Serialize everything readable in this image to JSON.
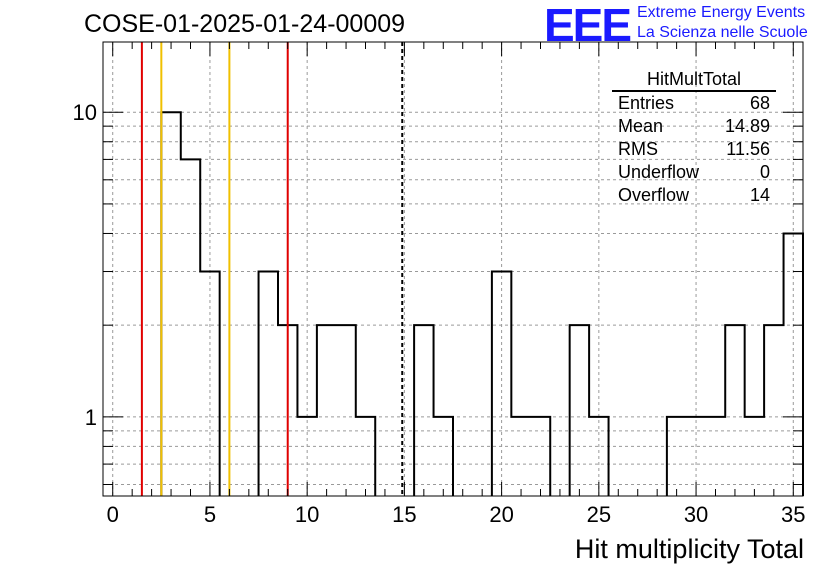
{
  "title": "COSE-01-2025-01-24-00009",
  "logo": {
    "mark": "EEE",
    "line1": "Extreme Energy Events",
    "line2": "La Scienza nelle Scuole"
  },
  "stats_box": {
    "name": "HitMultTotal",
    "rows": [
      {
        "label": "Entries",
        "value": "68"
      },
      {
        "label": "Mean",
        "value": "14.89"
      },
      {
        "label": "RMS",
        "value": "11.56"
      },
      {
        "label": "Underflow",
        "value": "0"
      },
      {
        "label": "Overflow",
        "value": "14"
      }
    ]
  },
  "colors": {
    "hist": "#000000",
    "red_line": "#e00000",
    "yellow_line": "#f0c000",
    "grid": "#9a9a9a"
  },
  "chart_data": {
    "type": "histogram",
    "xlabel": "Hit multiplicity Total",
    "ylabel": "",
    "xlim": [
      -0.5,
      35.5
    ],
    "ylim_log": [
      0.55,
      17
    ],
    "log_y": true,
    "grid": true,
    "bin_width": 1,
    "bin_start": -0.5,
    "counts": [
      0,
      0,
      0,
      10,
      7,
      3,
      0,
      0,
      3,
      2,
      1,
      2,
      2,
      1,
      0,
      0,
      2,
      1,
      0,
      0,
      3,
      1,
      1,
      0,
      2,
      1,
      0,
      0,
      0,
      1,
      1,
      1,
      2,
      1,
      2,
      4
    ],
    "x_ticks": [
      0,
      5,
      10,
      15,
      20,
      25,
      30,
      35
    ],
    "y_tick_labels": [
      {
        "value": 1,
        "label": "1"
      },
      {
        "value": 10,
        "label": "10"
      }
    ],
    "vertical_lines": [
      {
        "x": 1.5,
        "color": "red",
        "style": "solid"
      },
      {
        "x": 2.5,
        "color": "yellow",
        "style": "solid"
      },
      {
        "x": 6.0,
        "color": "yellow",
        "style": "solid"
      },
      {
        "x": 9.0,
        "color": "red",
        "style": "solid"
      },
      {
        "x": 14.89,
        "color": "black",
        "style": "dashed"
      }
    ]
  }
}
